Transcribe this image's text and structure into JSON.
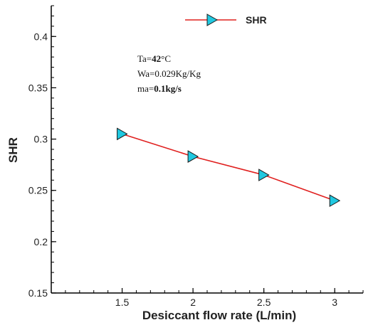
{
  "colors": {
    "line": "#e0201f",
    "marker_fill": "#20c8e0",
    "marker_stroke": "#1a1a1a",
    "axis": "#000000"
  },
  "chart_data": {
    "type": "line",
    "xlabel": "Desiccant flow rate (L/min)",
    "ylabel": "SHR",
    "xlim": [
      1.0,
      3.2
    ],
    "ylim": [
      0.15,
      0.43
    ],
    "xticks": [
      "1.5",
      "2",
      "2.5",
      "3"
    ],
    "yticks": [
      "0.15",
      "0.2",
      "0.25",
      "0.3",
      "0.35",
      "0.4"
    ],
    "grid": false,
    "legend_position": "top-right",
    "series": [
      {
        "name": "SHR",
        "x": [
          1.5,
          2.0,
          2.5,
          3.0
        ],
        "y": [
          0.305,
          0.283,
          0.265,
          0.24
        ]
      }
    ],
    "annotations": [
      {
        "label": "Ta=",
        "value": "42",
        "unit": "°C"
      },
      {
        "label": "Wa=",
        "value": "0.029Kg/Kg",
        "unit": ""
      },
      {
        "label": "ma=",
        "value": "0.1kg/s",
        "unit": ""
      }
    ]
  }
}
